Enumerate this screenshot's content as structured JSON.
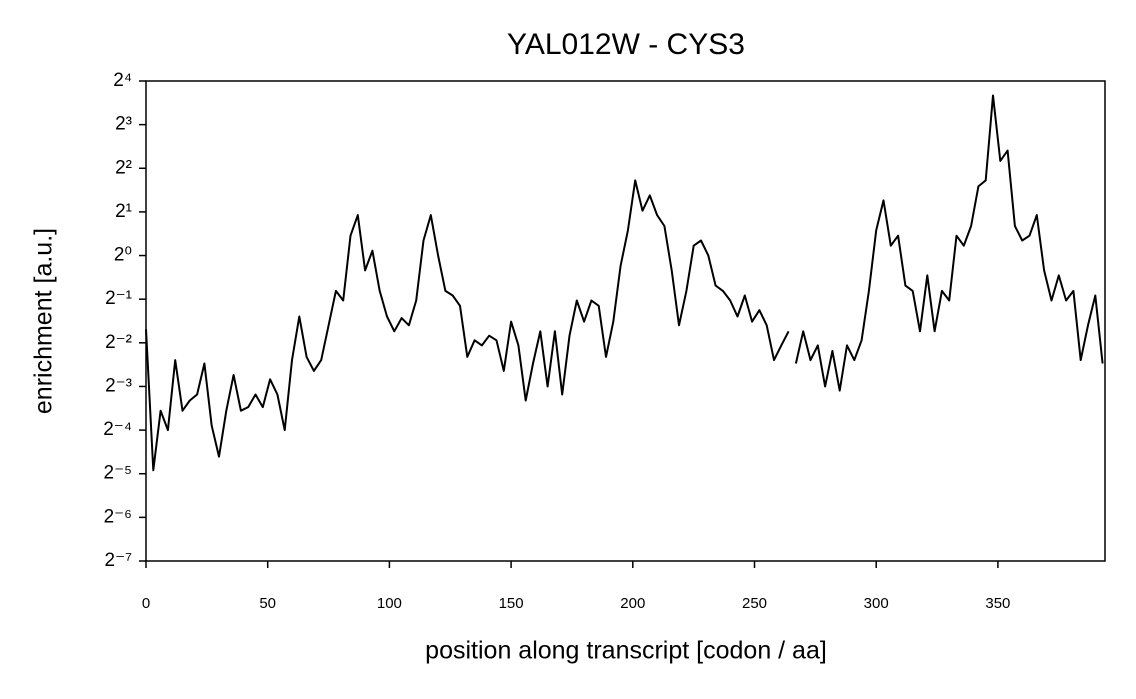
{
  "chart_data": {
    "type": "line",
    "title": "YAL012W - CYS3",
    "xlabel": "position along transcript [codon / aa]",
    "ylabel": "enrichment [a.u.]",
    "x": [
      0,
      3,
      6,
      9,
      12,
      15,
      18,
      21,
      24,
      27,
      30,
      33,
      36,
      39,
      42,
      45,
      48,
      51,
      54,
      57,
      60,
      63,
      66,
      69,
      72,
      75,
      78,
      81,
      84,
      87,
      90,
      93,
      96,
      99,
      102,
      105,
      108,
      111,
      114,
      117,
      120,
      123,
      126,
      129,
      132,
      135,
      138,
      141,
      144,
      147,
      150,
      153,
      156,
      159,
      162,
      165,
      168,
      171,
      174,
      177,
      180,
      183,
      186,
      189,
      192,
      195,
      198,
      201,
      204,
      207,
      210,
      213,
      216,
      219,
      222,
      225,
      228,
      231,
      234,
      237,
      240,
      243,
      246,
      249,
      252,
      255,
      258,
      261,
      264,
      265,
      267,
      270,
      273,
      276,
      279,
      282,
      285,
      288,
      291,
      294,
      297,
      300,
      303,
      306,
      309,
      312,
      315,
      318,
      321,
      324,
      327,
      330,
      333,
      336,
      339,
      342,
      345,
      348,
      351,
      354,
      357,
      360,
      363,
      366,
      369,
      372,
      375,
      378,
      381,
      384,
      387,
      390,
      393
    ],
    "values": [
      0.31,
      0.033,
      0.085,
      0.0625,
      0.19,
      0.085,
      0.1,
      0.11,
      0.18,
      0.067,
      0.041,
      0.085,
      0.15,
      0.085,
      0.09,
      0.11,
      0.09,
      0.14,
      0.11,
      0.0625,
      0.19,
      0.38,
      0.2,
      0.16,
      0.19,
      0.33,
      0.57,
      0.49,
      1.37,
      1.9,
      0.79,
      1.08,
      0.57,
      0.38,
      0.3,
      0.37,
      0.33,
      0.49,
      1.27,
      1.9,
      1,
      0.57,
      0.53,
      0.45,
      0.2,
      0.26,
      0.24,
      0.28,
      0.26,
      0.16,
      0.35,
      0.24,
      0.1,
      0.18,
      0.3,
      0.125,
      0.3,
      0.11,
      0.28,
      0.49,
      0.35,
      0.49,
      0.45,
      0.2,
      0.35,
      0.85,
      1.49,
      3.3,
      2.04,
      2.6,
      1.9,
      1.6,
      0.79,
      0.33,
      0.57,
      1.17,
      1.27,
      1,
      0.62,
      0.57,
      0.49,
      0.38,
      0.53,
      0.35,
      0.42,
      0.33,
      0.19,
      0.24,
      0.3,
      null,
      0.18,
      0.3,
      0.19,
      0.24,
      0.125,
      0.22,
      0.117,
      0.24,
      0.19,
      0.26,
      0.57,
      1.49,
      2.4,
      1.17,
      1.37,
      0.62,
      0.57,
      0.3,
      0.73,
      0.3,
      0.57,
      0.49,
      1.37,
      1.17,
      1.6,
      3.0,
      3.3,
      12.7,
      4.5,
      5.3,
      1.6,
      1.27,
      1.37,
      1.9,
      0.79,
      0.49,
      0.73,
      0.49,
      0.57,
      0.19,
      0.33,
      0.53,
      0.18
    ],
    "color": "#000000",
    "xlim": [
      0,
      394
    ],
    "xticks": [
      0,
      50,
      100,
      150,
      200,
      250,
      300,
      350
    ],
    "ylim": [
      0.0078125,
      16
    ],
    "log_scale_y": true,
    "yticks": [
      {
        "value": 0.0078125,
        "label": "2⁻⁷"
      },
      {
        "value": 0.015625,
        "label": "2⁻⁶"
      },
      {
        "value": 0.03125,
        "label": "2⁻⁵"
      },
      {
        "value": 0.0625,
        "label": "2⁻⁴"
      },
      {
        "value": 0.125,
        "label": "2⁻³"
      },
      {
        "value": 0.25,
        "label": "2⁻²"
      },
      {
        "value": 0.5,
        "label": "2⁻¹"
      },
      {
        "value": 1,
        "label": "2⁰"
      },
      {
        "value": 2,
        "label": "2¹"
      },
      {
        "value": 4,
        "label": "2²"
      },
      {
        "value": 8,
        "label": "2³"
      },
      {
        "value": 16,
        "label": "2⁴"
      }
    ],
    "grid": false
  }
}
